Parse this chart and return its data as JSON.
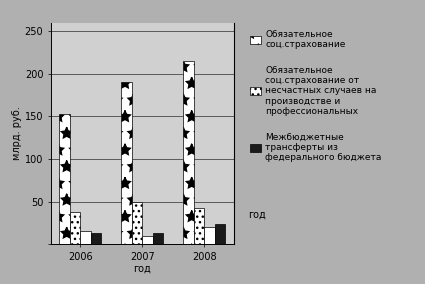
{
  "years": [
    "2006",
    "2007",
    "2008"
  ],
  "series": {
    "obligatory_social": [
      153,
      190,
      215
    ],
    "accident_insurance": [
      38,
      50,
      42
    ],
    "white_bar": [
      15,
      10,
      20
    ],
    "interbudget": [
      13,
      13,
      24
    ]
  },
  "ylabel": "млрд. руб.",
  "xlabel": "год",
  "ylim": [
    0,
    260
  ],
  "yticks": [
    0,
    50,
    100,
    150,
    200,
    250
  ],
  "fig_background": "#b0b0b0",
  "plot_background": "#d0d0d0",
  "legend_background": "#b0b0b0",
  "legend": [
    "Обязательное\nсоц.страхование",
    "Обязательное\nсоц.страхование от\nнесчастных случаев на\nпроизводстве и\nпрофессиональных",
    "Межбюджетные\nтрансферты из\nфедерального бюджета"
  ],
  "bar_width": 0.17,
  "tick_fontsize": 7,
  "label_fontsize": 7,
  "legend_fontsize": 6.5
}
